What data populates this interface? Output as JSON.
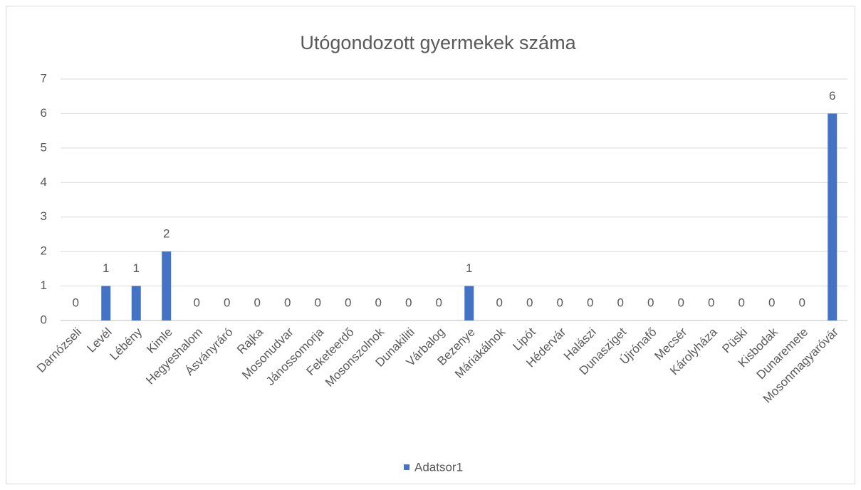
{
  "chart_data": {
    "type": "bar",
    "title": "Utógondozott gyermekek száma",
    "categories": [
      "Darnózseli",
      "Levél",
      "Lébény",
      "Kimle",
      "Hegyeshalom",
      "Ásványráró",
      "Rajka",
      "Mosonudvar",
      "Jánossomorja",
      "Feketeerdő",
      "Mosonszolnok",
      "Dunakiliti",
      "Várbalog",
      "Bezenye",
      "Máriakálnok",
      "Lipót",
      "Hédervár",
      "Halászi",
      "Dunasziget",
      "Újrónafő",
      "Mecsér",
      "Károlyháza",
      "Püski",
      "Kisbodak",
      "Dunaremete",
      "Mosonmagyaróvár"
    ],
    "series": [
      {
        "name": "Adatsor1",
        "color": "#4472c4",
        "values": [
          0,
          1,
          1,
          2,
          0,
          0,
          0,
          0,
          0,
          0,
          0,
          0,
          0,
          1,
          0,
          0,
          0,
          0,
          0,
          0,
          0,
          0,
          0,
          0,
          0,
          6
        ]
      }
    ],
    "ylim": [
      0,
      7
    ],
    "yticks": [
      0,
      1,
      2,
      3,
      4,
      5,
      6,
      7
    ],
    "grid": true,
    "data_labels": true,
    "legend": "bottom"
  }
}
